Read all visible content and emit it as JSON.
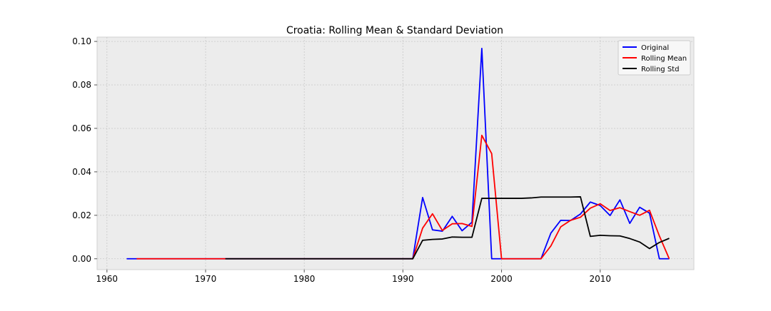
{
  "chart_data": {
    "type": "line",
    "title": "Croatia: Rolling Mean & Standard Deviation",
    "xlabel": "",
    "ylabel": "",
    "xlim": [
      1959,
      2019.5
    ],
    "ylim": [
      -0.005,
      0.102
    ],
    "xticks": [
      1960,
      1970,
      1980,
      1990,
      2000,
      2010
    ],
    "xtick_labels": [
      "1960",
      "1970",
      "1980",
      "1990",
      "2000",
      "2010"
    ],
    "yticks": [
      0.0,
      0.02,
      0.04,
      0.06,
      0.08,
      0.1
    ],
    "ytick_labels": [
      "0.00",
      "0.02",
      "0.04",
      "0.06",
      "0.08",
      "0.10"
    ],
    "grid": true,
    "legend_position": "top-right",
    "series": [
      {
        "name": "Original",
        "color": "#0000ff",
        "x": [
          1962,
          1963,
          1964,
          1965,
          1966,
          1967,
          1968,
          1969,
          1970,
          1971,
          1972,
          1973,
          1974,
          1975,
          1976,
          1977,
          1978,
          1979,
          1980,
          1981,
          1982,
          1983,
          1984,
          1985,
          1986,
          1987,
          1988,
          1989,
          1990,
          1991,
          1992,
          1993,
          1994,
          1995,
          1996,
          1997,
          1998,
          1999,
          2000,
          2001,
          2002,
          2003,
          2004,
          2005,
          2006,
          2007,
          2008,
          2009,
          2010,
          2011,
          2012,
          2013,
          2014,
          2015,
          2016,
          2017
        ],
        "y": [
          0,
          0,
          0,
          0,
          0,
          0,
          0,
          0,
          0,
          0,
          0,
          0,
          0,
          0,
          0,
          0,
          0,
          0,
          0,
          0,
          0,
          0,
          0,
          0,
          0,
          0,
          0,
          0,
          0,
          0,
          0.0282,
          0.0133,
          0.0127,
          0.0195,
          0.0129,
          0.0168,
          0.0968,
          0,
          0,
          0,
          0,
          0,
          0,
          0.0118,
          0.0177,
          0.0176,
          0.0206,
          0.0261,
          0.0245,
          0.0199,
          0.0271,
          0.0163,
          0.0237,
          0.021,
          0,
          0
        ]
      },
      {
        "name": "Rolling Mean",
        "color": "#ff0000",
        "x": [
          1963,
          1964,
          1965,
          1966,
          1967,
          1968,
          1969,
          1970,
          1971,
          1972,
          1973,
          1974,
          1975,
          1976,
          1977,
          1978,
          1979,
          1980,
          1981,
          1982,
          1983,
          1984,
          1985,
          1986,
          1987,
          1988,
          1989,
          1990,
          1991,
          1992,
          1993,
          1994,
          1995,
          1996,
          1997,
          1998,
          1999,
          2000,
          2001,
          2002,
          2003,
          2004,
          2005,
          2006,
          2007,
          2008,
          2009,
          2010,
          2011,
          2012,
          2013,
          2014,
          2015,
          2016,
          2017
        ],
        "y": [
          0,
          0,
          0,
          0,
          0,
          0,
          0,
          0,
          0,
          0,
          0,
          0,
          0,
          0,
          0,
          0,
          0,
          0,
          0,
          0,
          0,
          0,
          0,
          0,
          0,
          0,
          0,
          0,
          0,
          0.0141,
          0.0207,
          0.013,
          0.0161,
          0.0162,
          0.0149,
          0.0568,
          0.0484,
          0,
          0,
          0,
          0,
          0,
          0.0059,
          0.0147,
          0.0177,
          0.0191,
          0.0233,
          0.0253,
          0.0222,
          0.0235,
          0.0217,
          0.02,
          0.0223,
          0.0105,
          0
        ]
      },
      {
        "name": "Rolling Std",
        "color": "#000000",
        "x": [
          1972,
          1973,
          1974,
          1975,
          1976,
          1977,
          1978,
          1979,
          1980,
          1981,
          1982,
          1983,
          1984,
          1985,
          1986,
          1987,
          1988,
          1989,
          1990,
          1991,
          1992,
          1993,
          1994,
          1995,
          1996,
          1997,
          1998,
          1999,
          2000,
          2001,
          2002,
          2003,
          2004,
          2005,
          2006,
          2007,
          2008,
          2009,
          2010,
          2011,
          2012,
          2013,
          2014,
          2015,
          2016,
          2017
        ],
        "y": [
          0,
          0,
          0,
          0,
          0,
          0,
          0,
          0,
          0,
          0,
          0,
          0,
          0,
          0,
          0,
          0,
          0,
          0,
          0,
          0,
          0.0085,
          0.0089,
          0.0091,
          0.01,
          0.0099,
          0.0099,
          0.0278,
          0.0278,
          0.0278,
          0.0278,
          0.0278,
          0.028,
          0.0284,
          0.0284,
          0.0284,
          0.0284,
          0.0285,
          0.0103,
          0.0108,
          0.0106,
          0.0105,
          0.0093,
          0.0077,
          0.0047,
          0.0075,
          0.0094
        ]
      }
    ]
  }
}
